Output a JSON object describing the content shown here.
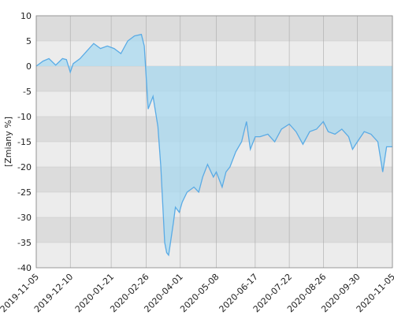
{
  "chart_data": {
    "type": "area",
    "y_label": "[Zmiany %]",
    "x": [
      "2019-11-05",
      "2019-11-12",
      "2019-11-18",
      "2019-11-25",
      "2019-12-02",
      "2019-12-06",
      "2019-12-10",
      "2019-12-13",
      "2019-12-20",
      "2019-12-27",
      "2020-01-03",
      "2020-01-10",
      "2020-01-17",
      "2020-01-24",
      "2020-01-31",
      "2020-02-07",
      "2020-02-14",
      "2020-02-21",
      "2020-02-24",
      "2020-02-28",
      "2020-03-04",
      "2020-03-09",
      "2020-03-12",
      "2020-03-16",
      "2020-03-18",
      "2020-03-20",
      "2020-03-25",
      "2020-03-27",
      "2020-03-31",
      "2020-04-03",
      "2020-04-08",
      "2020-04-15",
      "2020-04-20",
      "2020-04-24",
      "2020-04-29",
      "2020-05-05",
      "2020-05-08",
      "2020-05-14",
      "2020-05-18",
      "2020-05-22",
      "2020-05-28",
      "2020-06-03",
      "2020-06-08",
      "2020-06-12",
      "2020-06-17",
      "2020-06-22",
      "2020-06-30",
      "2020-07-07",
      "2020-07-14",
      "2020-07-22",
      "2020-07-29",
      "2020-08-05",
      "2020-08-12",
      "2020-08-19",
      "2020-08-26",
      "2020-08-31",
      "2020-09-07",
      "2020-09-14",
      "2020-09-21",
      "2020-09-25",
      "2020-09-30",
      "2020-10-07",
      "2020-10-14",
      "2020-10-21",
      "2020-10-26",
      "2020-10-30",
      "2020-11-05"
    ],
    "values": [
      0,
      1,
      1.5,
      0.2,
      1.5,
      1.3,
      -1.2,
      0.5,
      1.5,
      3,
      4.5,
      3.5,
      4,
      3.5,
      2.5,
      5,
      6,
      6.3,
      4,
      -8.5,
      -6,
      -12,
      -20,
      -35,
      -37,
      -37.5,
      -31,
      -28,
      -29,
      -27,
      -25,
      -24,
      -25,
      -22,
      -19.5,
      -22,
      -21,
      -24,
      -21,
      -20,
      -17,
      -15,
      -11,
      -16.5,
      -14,
      -14,
      -13.5,
      -15,
      -12.5,
      -11.5,
      -13,
      -15.5,
      -13,
      -12.5,
      -11,
      -13,
      -13.5,
      -12.5,
      -14,
      -16.5,
      -15,
      -13,
      -13.5,
      -15,
      -21,
      -16,
      -16
    ],
    "line_color": "#5aabe5",
    "fill_color": "#a9d9f0",
    "xlim": [
      "2019-11-05",
      "2020-11-05"
    ],
    "xticks": [
      "2019-11-05",
      "2019-12-10",
      "2020-01-21",
      "2020-02-26",
      "2020-04-01",
      "2020-05-08",
      "2020-06-17",
      "2020-07-22",
      "2020-08-26",
      "2020-09-30",
      "2020-11-05"
    ],
    "ylim": [
      -40,
      10
    ],
    "yticks": [
      -40,
      -35,
      -30,
      -25,
      -20,
      -15,
      -10,
      -5,
      0,
      5,
      10
    ],
    "grid": true
  }
}
